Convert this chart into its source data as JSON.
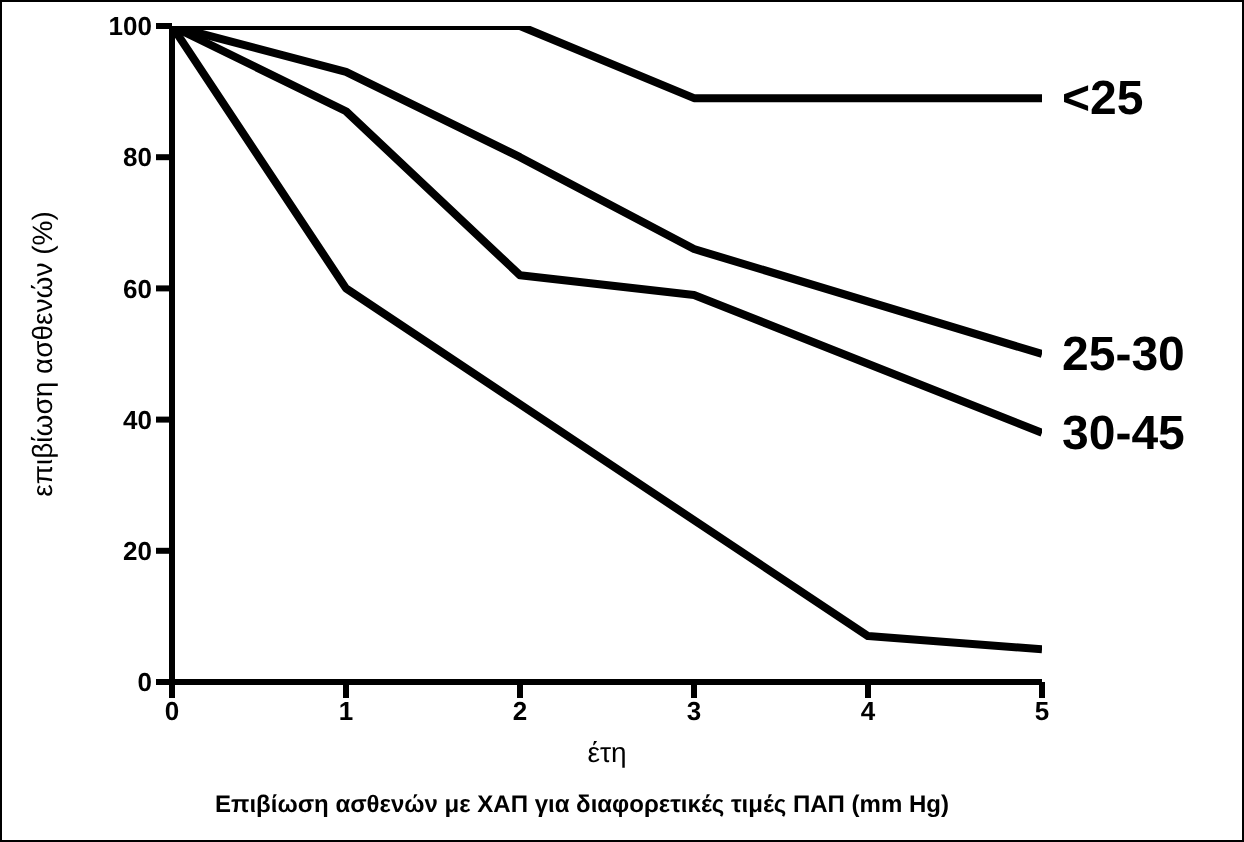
{
  "chart_data": {
    "type": "line",
    "xlabel": "έτη",
    "ylabel": "επιβίωση ασθενών (%)",
    "annotations": [
      "Επιβίωση ασθενών με ΧΑΠ για διαφορετικές τιμές ΠΑΠ (mm Hg)"
    ],
    "xlim": [
      0,
      5
    ],
    "xticks": [
      0,
      1,
      2,
      3,
      4,
      5
    ],
    "ylim": [
      0,
      100
    ],
    "yticks": [
      0,
      20,
      40,
      60,
      80,
      100
    ],
    "grid": false,
    "legend": false,
    "marker": "none",
    "line_style": "solid",
    "series": [
      {
        "name": "<25",
        "color": "#000000",
        "x": [
          0,
          2,
          3,
          5
        ],
        "values": [
          100,
          100,
          89,
          89
        ]
      },
      {
        "name": "25-30",
        "color": "#000000",
        "x": [
          0,
          1,
          2,
          3,
          5
        ],
        "values": [
          100,
          93,
          80,
          66,
          50
        ]
      },
      {
        "name": "30-45",
        "color": "#000000",
        "x": [
          0,
          1,
          2,
          3,
          5
        ],
        "values": [
          100,
          87,
          62,
          59,
          38
        ]
      },
      {
        "color": "#000000",
        "x": [
          0,
          1,
          4,
          5
        ],
        "values": [
          100,
          60,
          7,
          5
        ]
      }
    ]
  }
}
